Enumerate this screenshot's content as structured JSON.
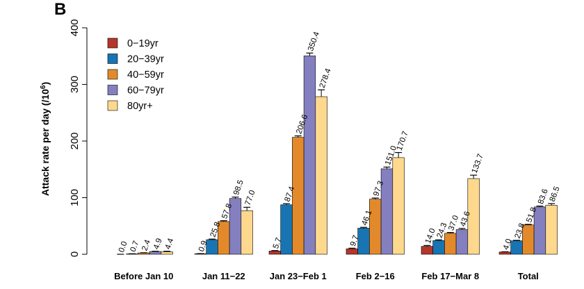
{
  "panel_label": "B",
  "chart_data": {
    "type": "bar",
    "ylabel": "Attack rate per day (/10",
    "ylabel_sup": "6",
    "ylabel_end": ")",
    "ylim": [
      0,
      400
    ],
    "yticks": [
      "0",
      "100",
      "200",
      "300",
      "400"
    ],
    "grid": false,
    "legend_placement": "top-left",
    "categories": [
      "Before Jan 10",
      "Jan 11−22",
      "Jan 23−Feb 1",
      "Feb 2−16",
      "Feb 17−Mar 8",
      "Total"
    ],
    "series": [
      {
        "name": "0−19yr",
        "color": "#b5362c",
        "values": [
          0.0,
          0.9,
          5.7,
          9.7,
          14.0,
          4.0
        ],
        "labels": [
          "0.0",
          "0.9",
          "5.7",
          "9.7",
          "14.0",
          "4.0"
        ],
        "err": [
          0,
          0.3,
          0.8,
          1.0,
          1.5,
          0.4
        ]
      },
      {
        "name": "20−39yr",
        "color": "#1874b3",
        "values": [
          0.7,
          25.8,
          87.4,
          46.1,
          24.3,
          23.8
        ],
        "labels": [
          "0.7",
          "25.8",
          "87.4",
          "46.1",
          "24.3",
          "23.8"
        ],
        "err": [
          0.2,
          1.0,
          2.0,
          1.5,
          1.2,
          0.8
        ]
      },
      {
        "name": "40−59yr",
        "color": "#e28a2b",
        "values": [
          2.4,
          57.8,
          206.6,
          97.3,
          37.0,
          51.8
        ],
        "labels": [
          "2.4",
          "57.8",
          "206.6",
          "97.3",
          "37.0",
          "51.8"
        ],
        "err": [
          0.3,
          1.5,
          2.5,
          2.0,
          1.5,
          1.0
        ]
      },
      {
        "name": "60−79yr",
        "color": "#8480bf",
        "values": [
          4.9,
          98.5,
          350.4,
          151.0,
          43.6,
          83.6
        ],
        "labels": [
          "4.9",
          "98.5",
          "350.4",
          "151.0",
          "43.6",
          "83.6"
        ],
        "err": [
          0.5,
          2.5,
          5.0,
          3.0,
          2.0,
          1.5
        ]
      },
      {
        "name": "80yr+",
        "color": "#fdd88d",
        "values": [
          4.4,
          77.0,
          278.4,
          170.7,
          133.7,
          86.5
        ],
        "labels": [
          "4.4",
          "77.0",
          "278.4",
          "170.7",
          "133.7",
          "86.5"
        ],
        "err": [
          1.0,
          6.0,
          12.0,
          9.0,
          6.0,
          3.0
        ]
      }
    ]
  }
}
